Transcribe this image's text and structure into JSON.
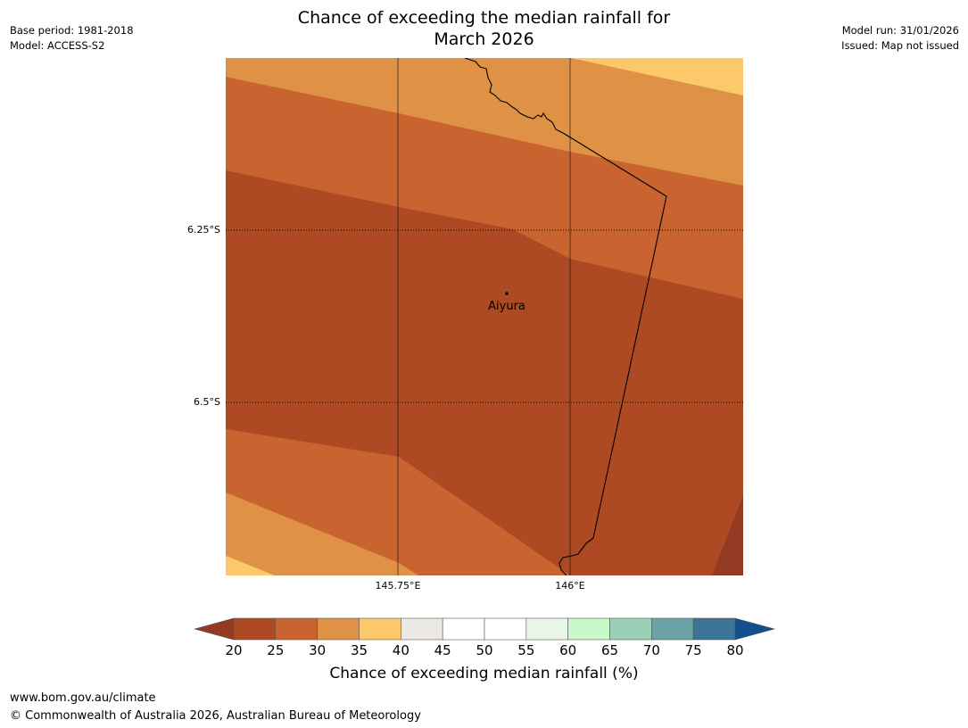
{
  "title": {
    "line1": "Chance of exceeding the median rainfall for",
    "line2": "March 2026"
  },
  "meta_left": {
    "base_period": "Base period: 1981-2018",
    "model": "Model: ACCESS-S2"
  },
  "meta_right": {
    "model_run": "Model run: 31/01/2026",
    "issued": "Issued: Map not issued"
  },
  "map": {
    "lat_labels": [
      "6.25°S",
      "6.5°S"
    ],
    "lon_labels": [
      "145.75°E",
      "146°E"
    ],
    "place": "Aiyura"
  },
  "colorbar": {
    "ticks": [
      "20",
      "25",
      "30",
      "35",
      "40",
      "45",
      "50",
      "55",
      "60",
      "65",
      "70",
      "75",
      "80"
    ],
    "colors": [
      "#ad4a24",
      "#c96431",
      "#df9245",
      "#fbc96a",
      "#ece9e5",
      "#ffffff",
      "#ffffff",
      "#e8f6e8",
      "#c9f9c8",
      "#9ccfb7",
      "#6aa3a5",
      "#3c7497"
    ],
    "low_extend_color": "#943a22",
    "high_extend_color": "#134f8c",
    "title": "Chance of exceeding median rainfall (%)"
  },
  "footer": {
    "url": "www.bom.gov.au/climate",
    "copyright": "© Commonwealth of Australia 2026, Australian Bureau of Meteorology"
  }
}
